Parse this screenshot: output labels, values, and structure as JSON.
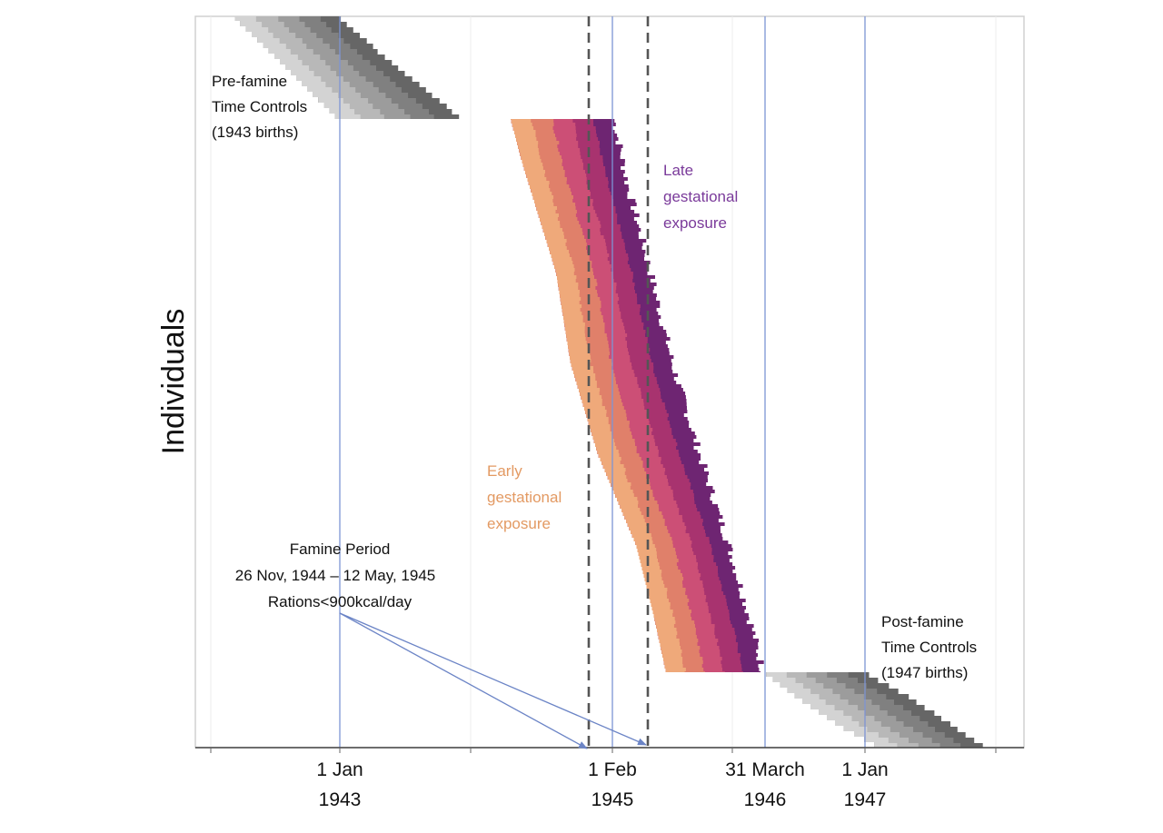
{
  "chart_data": {
    "type": "staircase-timeline",
    "ylabel": "Individuals",
    "x_ticks": [
      {
        "line1": "1 Jan",
        "line2": "1943"
      },
      {
        "line1": "1 Feb",
        "line2": "1945"
      },
      {
        "line1": "31 March",
        "line2": "1946"
      },
      {
        "line1": "1 Jan",
        "line2": "1947"
      }
    ],
    "famine": {
      "title": "Famine Period",
      "dates": "26 Nov, 1944 – 12 May, 1945",
      "rations": "Rations<900kcal/day"
    },
    "pre_controls": {
      "line1": "Pre-famine",
      "line2": "Time Controls",
      "line3": "(1943 births)"
    },
    "post_controls": {
      "line1": "Post-famine",
      "line2": "Time Controls",
      "line3": "(1947 births)"
    },
    "late_label": {
      "line1": "Late",
      "line2": "gestational",
      "line3": "exposure"
    },
    "early_label": {
      "line1": "Early",
      "line2": "gestational",
      "line3": "exposure"
    },
    "exposed_band_colors": [
      "#efa97a",
      "#e0806a",
      "#cc4f76",
      "#a8336f",
      "#6e2572"
    ],
    "control_band_colors": [
      "#d3d3d3",
      "#b8b8b8",
      "#9c9c9c",
      "#808080",
      "#666666"
    ],
    "colors": {
      "late_text": "#7a3a9a",
      "early_text": "#e39a63",
      "blue_line": "#7d94d4",
      "dashed_line": "#555555",
      "arrow": "#6b84c6"
    }
  }
}
